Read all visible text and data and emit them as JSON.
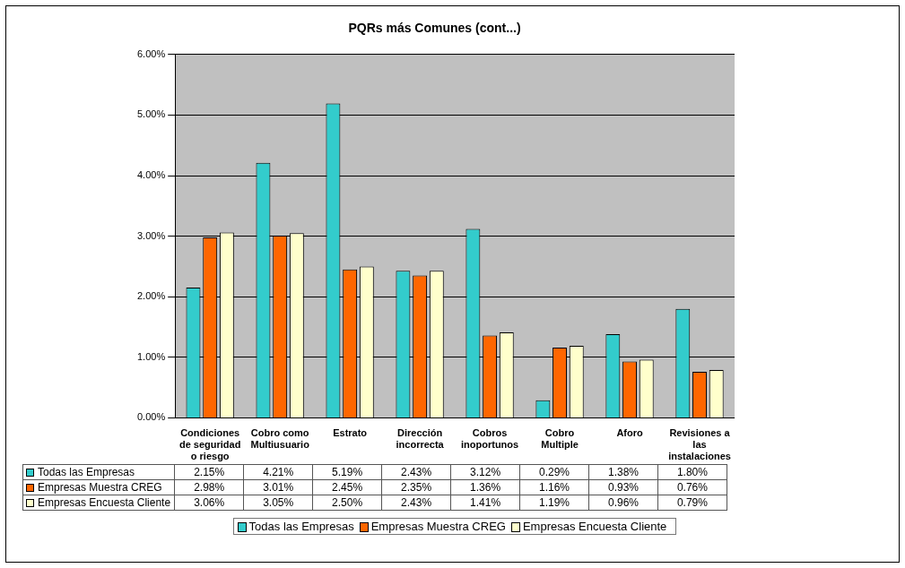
{
  "chart_data": {
    "type": "bar",
    "title": "PQRs más Comunes (cont...)",
    "categories": [
      "Condiciones de seguridad o riesgo",
      "Cobro como Multiusuario",
      "Estrato",
      "Dirección incorrecta",
      "Cobros inoportunos",
      "Cobro Multiple",
      "Aforo",
      "Revisiones a las instalaciones"
    ],
    "series": [
      {
        "name": "Todas las Empresas",
        "color": "#33cccc",
        "values": [
          2.15,
          4.21,
          5.19,
          2.43,
          3.12,
          0.29,
          1.38,
          1.8
        ],
        "value_labels": [
          "2.15%",
          "4.21%",
          "5.19%",
          "2.43%",
          "3.12%",
          "0.29%",
          "1.38%",
          "1.80%"
        ]
      },
      {
        "name": "Empresas Muestra CREG",
        "color": "#ff6600",
        "values": [
          2.98,
          3.01,
          2.45,
          2.35,
          1.36,
          1.16,
          0.93,
          0.76
        ],
        "value_labels": [
          "2.98%",
          "3.01%",
          "2.45%",
          "2.35%",
          "1.36%",
          "1.16%",
          "0.93%",
          "0.76%"
        ]
      },
      {
        "name": "Empresas Encuesta Cliente",
        "color": "#ffffcc",
        "values": [
          3.06,
          3.05,
          2.5,
          2.43,
          1.41,
          1.19,
          0.96,
          0.79
        ],
        "value_labels": [
          "3.06%",
          "3.05%",
          "2.50%",
          "2.43%",
          "1.41%",
          "1.19%",
          "0.96%",
          "0.79%"
        ]
      }
    ],
    "ylim": [
      0,
      6
    ],
    "yticks": [
      {
        "value": 0,
        "label": "0.00%"
      },
      {
        "value": 1,
        "label": "1.00%"
      },
      {
        "value": 2,
        "label": "2.00%"
      },
      {
        "value": 3,
        "label": "3.00%"
      },
      {
        "value": 4,
        "label": "4.00%"
      },
      {
        "value": 5,
        "label": "5.00%"
      },
      {
        "value": 6,
        "label": "6.00%"
      }
    ],
    "grid": "y",
    "legend": "bottom"
  }
}
